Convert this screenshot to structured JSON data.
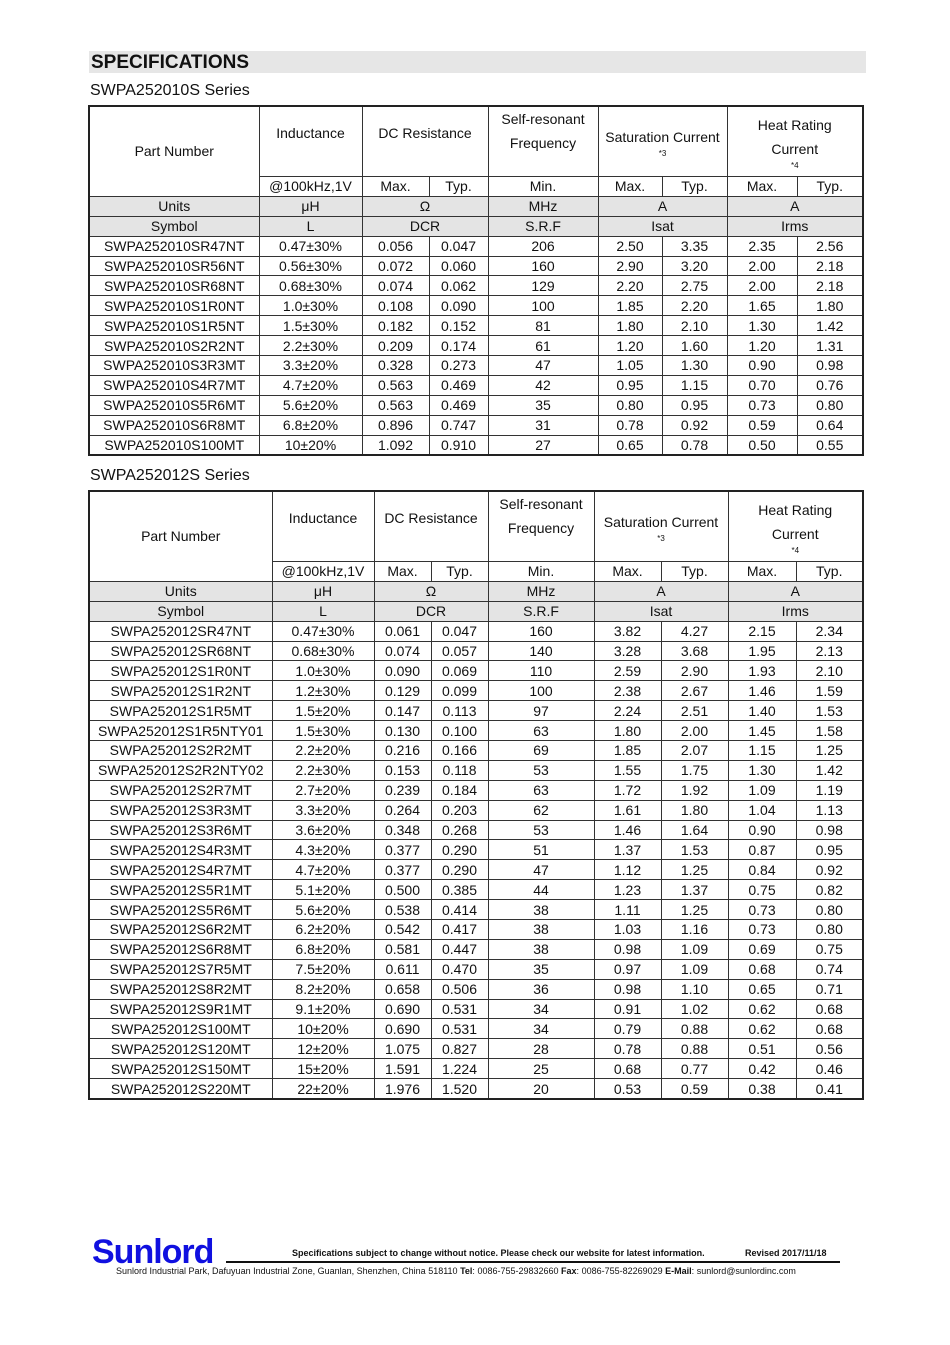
{
  "title": "SPECIFICATIONS",
  "header_labels": {
    "part_number": "Part Number",
    "inductance": "Inductance",
    "dc_resistance": "DC Resistance",
    "srf_line1": "Self-resonant",
    "srf_line2": "Frequency",
    "sat_current": "Saturation Current",
    "sat_note": "*3",
    "heat_line1": "Heat Rating",
    "heat_line2": "Current",
    "heat_note": "*4"
  },
  "sub_header": [
    "@100kHz,1V",
    "Max.",
    "Typ.",
    "Min.",
    "Max.",
    "Typ.",
    "Max.",
    "Typ."
  ],
  "units_row": [
    "Units",
    "μH",
    "Ω",
    "MHz",
    "A",
    "A"
  ],
  "symbol_row": [
    "Symbol",
    "L",
    "DCR",
    "S.R.F",
    "Isat",
    "Irms"
  ],
  "tables": [
    {
      "series": "SWPA252010S Series",
      "rows": [
        [
          "SWPA252010SR47NT",
          "0.47±30%",
          "0.056",
          "0.047",
          "206",
          "2.50",
          "3.35",
          "2.35",
          "2.56"
        ],
        [
          "SWPA252010SR56NT",
          "0.56±30%",
          "0.072",
          "0.060",
          "160",
          "2.90",
          "3.20",
          "2.00",
          "2.18"
        ],
        [
          "SWPA252010SR68NT",
          "0.68±30%",
          "0.074",
          "0.062",
          "129",
          "2.20",
          "2.75",
          "2.00",
          "2.18"
        ],
        [
          "SWPA252010S1R0NT",
          "1.0±30%",
          "0.108",
          "0.090",
          "100",
          "1.85",
          "2.20",
          "1.65",
          "1.80"
        ],
        [
          "SWPA252010S1R5NT",
          "1.5±30%",
          "0.182",
          "0.152",
          "81",
          "1.80",
          "2.10",
          "1.30",
          "1.42"
        ],
        [
          "SWPA252010S2R2NT",
          "2.2±30%",
          "0.209",
          "0.174",
          "61",
          "1.20",
          "1.60",
          "1.20",
          "1.31"
        ],
        [
          "SWPA252010S3R3MT",
          "3.3±20%",
          "0.328",
          "0.273",
          "47",
          "1.05",
          "1.30",
          "0.90",
          "0.98"
        ],
        [
          "SWPA252010S4R7MT",
          "4.7±20%",
          "0.563",
          "0.469",
          "42",
          "0.95",
          "1.15",
          "0.70",
          "0.76"
        ],
        [
          "SWPA252010S5R6MT",
          "5.6±20%",
          "0.563",
          "0.469",
          "35",
          "0.80",
          "0.95",
          "0.73",
          "0.80"
        ],
        [
          "SWPA252010S6R8MT",
          "6.8±20%",
          "0.896",
          "0.747",
          "31",
          "0.78",
          "0.92",
          "0.59",
          "0.64"
        ],
        [
          "SWPA252010S100MT",
          "10±20%",
          "1.092",
          "0.910",
          "27",
          "0.65",
          "0.78",
          "0.50",
          "0.55"
        ]
      ]
    },
    {
      "series": "SWPA252012S Series",
      "rows": [
        [
          "SWPA252012SR47NT",
          "0.47±30%",
          "0.061",
          "0.047",
          "160",
          "3.82",
          "4.27",
          "2.15",
          "2.34"
        ],
        [
          "SWPA252012SR68NT",
          "0.68±30%",
          "0.074",
          "0.057",
          "140",
          "3.28",
          "3.68",
          "1.95",
          "2.13"
        ],
        [
          "SWPA252012S1R0NT",
          "1.0±30%",
          "0.090",
          "0.069",
          "110",
          "2.59",
          "2.90",
          "1.93",
          "2.10"
        ],
        [
          "SWPA252012S1R2NT",
          "1.2±30%",
          "0.129",
          "0.099",
          "100",
          "2.38",
          "2.67",
          "1.46",
          "1.59"
        ],
        [
          "SWPA252012S1R5MT",
          "1.5±20%",
          "0.147",
          "0.113",
          "97",
          "2.24",
          "2.51",
          "1.40",
          "1.53"
        ],
        [
          "SWPA252012S1R5NTY01",
          "1.5±30%",
          "0.130",
          "0.100",
          "63",
          "1.80",
          "2.00",
          "1.45",
          "1.58"
        ],
        [
          "SWPA252012S2R2MT",
          "2.2±20%",
          "0.216",
          "0.166",
          "69",
          "1.85",
          "2.07",
          "1.15",
          "1.25"
        ],
        [
          "SWPA252012S2R2NTY02",
          "2.2±30%",
          "0.153",
          "0.118",
          "53",
          "1.55",
          "1.75",
          "1.30",
          "1.42"
        ],
        [
          "SWPA252012S2R7MT",
          "2.7±20%",
          "0.239",
          "0.184",
          "63",
          "1.72",
          "1.92",
          "1.09",
          "1.19"
        ],
        [
          "SWPA252012S3R3MT",
          "3.3±20%",
          "0.264",
          "0.203",
          "62",
          "1.61",
          "1.80",
          "1.04",
          "1.13"
        ],
        [
          "SWPA252012S3R6MT",
          "3.6±20%",
          "0.348",
          "0.268",
          "53",
          "1.46",
          "1.64",
          "0.90",
          "0.98"
        ],
        [
          "SWPA252012S4R3MT",
          "4.3±20%",
          "0.377",
          "0.290",
          "51",
          "1.37",
          "1.53",
          "0.87",
          "0.95"
        ],
        [
          "SWPA252012S4R7MT",
          "4.7±20%",
          "0.377",
          "0.290",
          "47",
          "1.12",
          "1.25",
          "0.84",
          "0.92"
        ],
        [
          "SWPA252012S5R1MT",
          "5.1±20%",
          "0.500",
          "0.385",
          "44",
          "1.23",
          "1.37",
          "0.75",
          "0.82"
        ],
        [
          "SWPA252012S5R6MT",
          "5.6±20%",
          "0.538",
          "0.414",
          "38",
          "1.11",
          "1.25",
          "0.73",
          "0.80"
        ],
        [
          "SWPA252012S6R2MT",
          "6.2±20%",
          "0.542",
          "0.417",
          "38",
          "1.03",
          "1.16",
          "0.73",
          "0.80"
        ],
        [
          "SWPA252012S6R8MT",
          "6.8±20%",
          "0.581",
          "0.447",
          "38",
          "0.98",
          "1.09",
          "0.69",
          "0.75"
        ],
        [
          "SWPA252012S7R5MT",
          "7.5±20%",
          "0.611",
          "0.470",
          "35",
          "0.97",
          "1.09",
          "0.68",
          "0.74"
        ],
        [
          "SWPA252012S8R2MT",
          "8.2±20%",
          "0.658",
          "0.506",
          "36",
          "0.98",
          "1.10",
          "0.65",
          "0.71"
        ],
        [
          "SWPA252012S9R1MT",
          "9.1±20%",
          "0.690",
          "0.531",
          "34",
          "0.91",
          "1.02",
          "0.62",
          "0.68"
        ],
        [
          "SWPA252012S100MT",
          "10±20%",
          "0.690",
          "0.531",
          "34",
          "0.79",
          "0.88",
          "0.62",
          "0.68"
        ],
        [
          "SWPA252012S120MT",
          "12±20%",
          "1.075",
          "0.827",
          "28",
          "0.78",
          "0.88",
          "0.51",
          "0.56"
        ],
        [
          "SWPA252012S150MT",
          "15±20%",
          "1.591",
          "1.224",
          "25",
          "0.68",
          "0.77",
          "0.42",
          "0.46"
        ],
        [
          "SWPA252012S220MT",
          "22±20%",
          "1.976",
          "1.520",
          "20",
          "0.53",
          "0.59",
          "0.38",
          "0.41"
        ]
      ]
    }
  ],
  "footer": {
    "logo": "Sunlord",
    "logo_color": "#1010e0",
    "notice": "Specifications subject to change without notice. Please check our website for latest information.",
    "revised": "Revised 2017/11/18",
    "address": "Sunlord Industrial Park, Dafuyuan Industrial Zone, Guanlan, Shenzhen, China 518110",
    "tel_label": "Tel",
    "tel": "0086-755-29832660",
    "fax_label": "Fax",
    "fax": "0086-755-82269029",
    "email_label": "E-Mail",
    "email": "sunlord@sunlordinc.com"
  }
}
